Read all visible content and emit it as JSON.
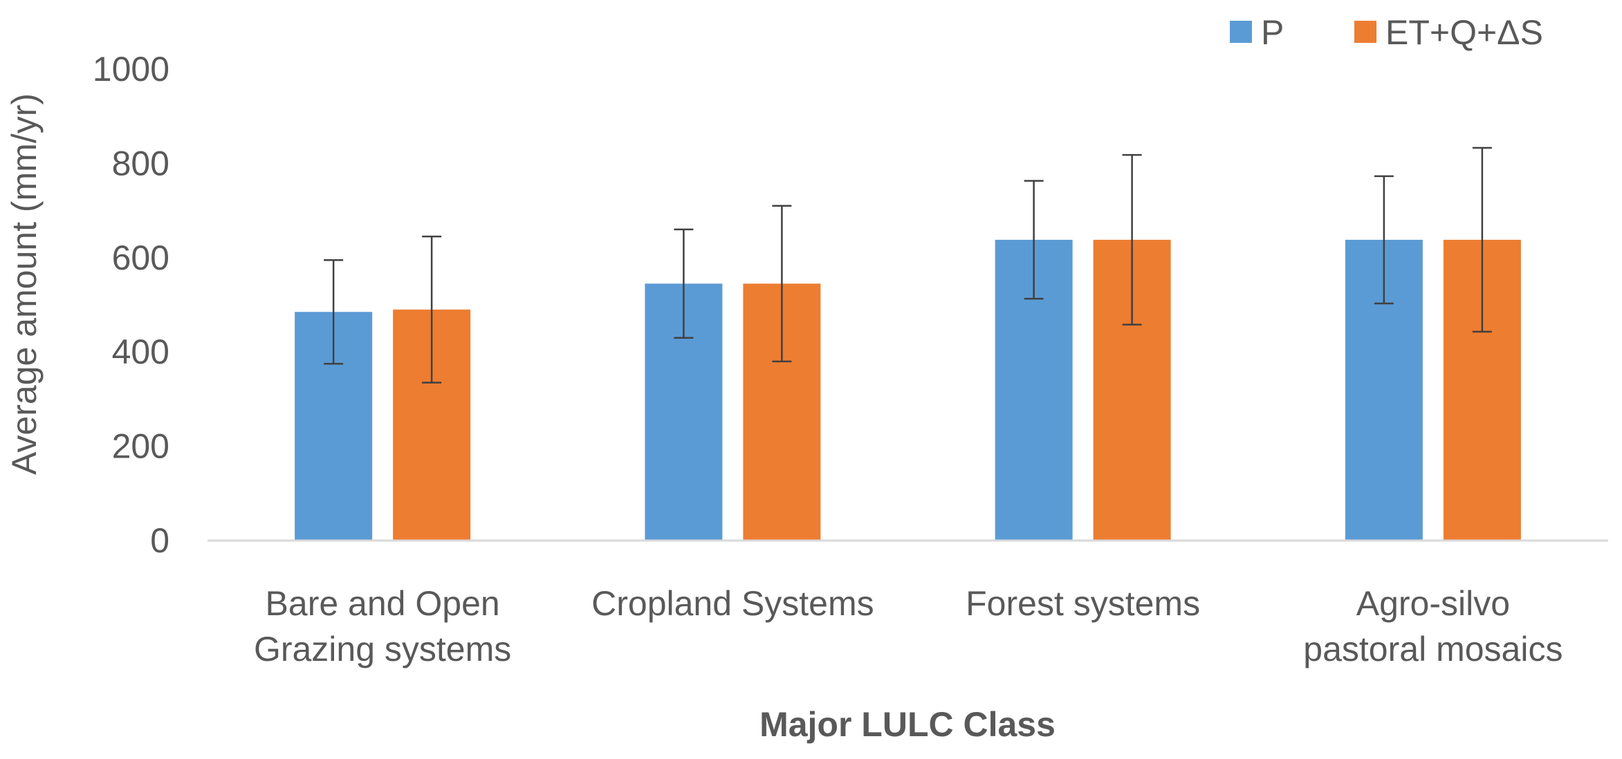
{
  "chart_data": {
    "type": "bar",
    "title": "",
    "xlabel": "Major LULC Class",
    "ylabel": "Average amount (mm/yr)",
    "ylim": [
      0,
      1000
    ],
    "yticks": [
      0,
      200,
      400,
      600,
      800,
      1000
    ],
    "categories": [
      [
        "Bare and Open",
        "Grazing systems"
      ],
      [
        "Cropland Systems"
      ],
      [
        "Forest systems"
      ],
      [
        "Agro-silvo",
        "pastoral mosaics"
      ]
    ],
    "series": [
      {
        "name": "P",
        "color": "#5B9BD5",
        "values": [
          485,
          545,
          638,
          638
        ],
        "error": [
          110,
          115,
          125,
          135
        ]
      },
      {
        "name": "ET+Q+ΔS",
        "color": "#ED7D31",
        "values": [
          490,
          545,
          638,
          638
        ],
        "error": [
          155,
          165,
          180,
          195
        ]
      }
    ],
    "legend": {
      "position": "top-right"
    },
    "grid": false,
    "error_bar_color": "#404040",
    "axis_color": "#D9D9D9"
  }
}
